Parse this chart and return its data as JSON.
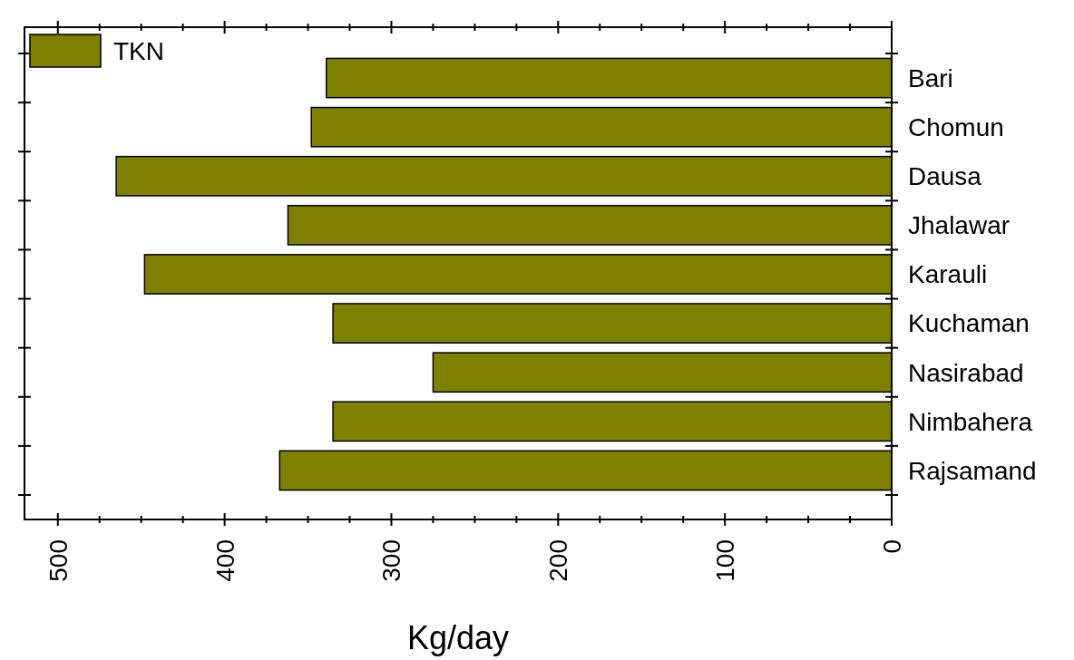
{
  "chart_data": {
    "type": "bar",
    "orientation": "horizontal",
    "xlabel": "Kg/day",
    "categories": [
      "Bari",
      "Chomun",
      "Dausa",
      "Jhalawar",
      "Karauli",
      "Kuchaman",
      "Nasirabad",
      "Nimbahera",
      "Rajsamand"
    ],
    "series": [
      {
        "name": "TKN",
        "color": "#808000",
        "values": [
          339,
          348,
          465,
          362,
          448,
          335,
          275,
          335,
          367
        ]
      }
    ],
    "xlim": [
      520,
      0
    ],
    "xticks": [
      0,
      {
        "value": 25,
        "label": null
      },
      100,
      {
        "value": 125,
        "label": null
      },
      {
        "value": 50,
        "label": null
      },
      {
        "value": 75,
        "label": null
      },
      {
        "value": 150,
        "label": null
      },
      {
        "value": 175,
        "label": null
      },
      200,
      {
        "value": 225,
        "label": null
      },
      {
        "value": 250,
        "label": null
      },
      {
        "value": 275,
        "label": null
      },
      300,
      {
        "value": 325,
        "label": null
      },
      {
        "value": 350,
        "label": null
      },
      {
        "value": 375,
        "label": null
      },
      400,
      {
        "value": 425,
        "label": null
      },
      {
        "value": 450,
        "label": null
      },
      {
        "value": 475,
        "label": null
      },
      500
    ],
    "legend": "top left",
    "grid": false
  }
}
